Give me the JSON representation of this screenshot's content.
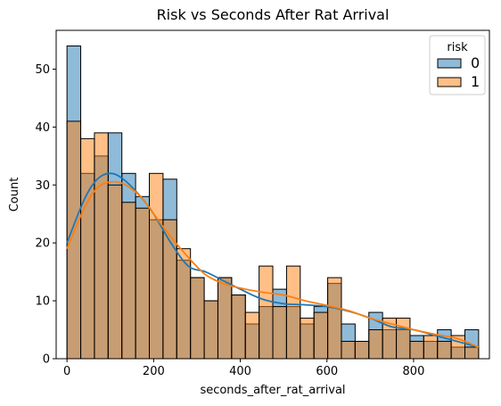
{
  "chart_data": {
    "type": "bar",
    "subtype": "overlaid-histogram-with-kde",
    "title": "Risk vs Seconds After Rat Arrival",
    "xlabel": "seconds_after_rat_arrival",
    "ylabel": "Count",
    "xlim": [
      -25,
      975
    ],
    "ylim": [
      0,
      56.7
    ],
    "x_ticks": [
      0,
      200,
      400,
      600,
      800
    ],
    "y_ticks": [
      0,
      10,
      20,
      30,
      40,
      50
    ],
    "bin_start": 0,
    "bin_width": 31.67,
    "grid": false,
    "legend": {
      "title": "risk",
      "placement": "top-right"
    },
    "series": [
      {
        "name": "0",
        "color": "#1f77b4",
        "values": [
          54,
          32,
          35,
          39,
          32,
          28,
          24,
          31,
          17,
          14,
          10,
          14,
          11,
          6,
          9,
          12,
          9,
          6,
          9,
          13,
          6,
          3,
          8,
          5,
          5,
          4,
          3,
          5,
          2,
          5
        ],
        "kde": [
          [
            0,
            20
          ],
          [
            40,
            27.5
          ],
          [
            70,
            31
          ],
          [
            100,
            32
          ],
          [
            130,
            31
          ],
          [
            170,
            28
          ],
          [
            200,
            25
          ],
          [
            240,
            20
          ],
          [
            280,
            16
          ],
          [
            320,
            15
          ],
          [
            360,
            13.5
          ],
          [
            400,
            12
          ],
          [
            450,
            10.3
          ],
          [
            500,
            9.5
          ],
          [
            550,
            9.3
          ],
          [
            600,
            9
          ],
          [
            650,
            8.2
          ],
          [
            700,
            7
          ],
          [
            750,
            5.5
          ],
          [
            800,
            5
          ],
          [
            850,
            4
          ],
          [
            900,
            3
          ],
          [
            950,
            2
          ]
        ]
      },
      {
        "name": "1",
        "color": "#ff7f0e",
        "values": [
          41,
          38,
          39,
          30,
          27,
          26,
          32,
          24,
          19,
          14,
          10,
          14,
          11,
          8,
          16,
          9,
          16,
          7,
          8,
          14,
          3,
          3,
          5,
          7,
          7,
          3,
          4,
          3,
          4,
          2
        ],
        "kde": [
          [
            0,
            19
          ],
          [
            40,
            26
          ],
          [
            70,
            29.5
          ],
          [
            100,
            30.5
          ],
          [
            130,
            30.2
          ],
          [
            170,
            28
          ],
          [
            200,
            25
          ],
          [
            240,
            21
          ],
          [
            280,
            17.5
          ],
          [
            320,
            14.5
          ],
          [
            360,
            13
          ],
          [
            400,
            12.2
          ],
          [
            450,
            11.5
          ],
          [
            500,
            11
          ],
          [
            550,
            10
          ],
          [
            600,
            9.2
          ],
          [
            650,
            8.3
          ],
          [
            700,
            7
          ],
          [
            750,
            6
          ],
          [
            800,
            5
          ],
          [
            850,
            4.2
          ],
          [
            900,
            3.5
          ],
          [
            950,
            2
          ]
        ]
      }
    ]
  }
}
